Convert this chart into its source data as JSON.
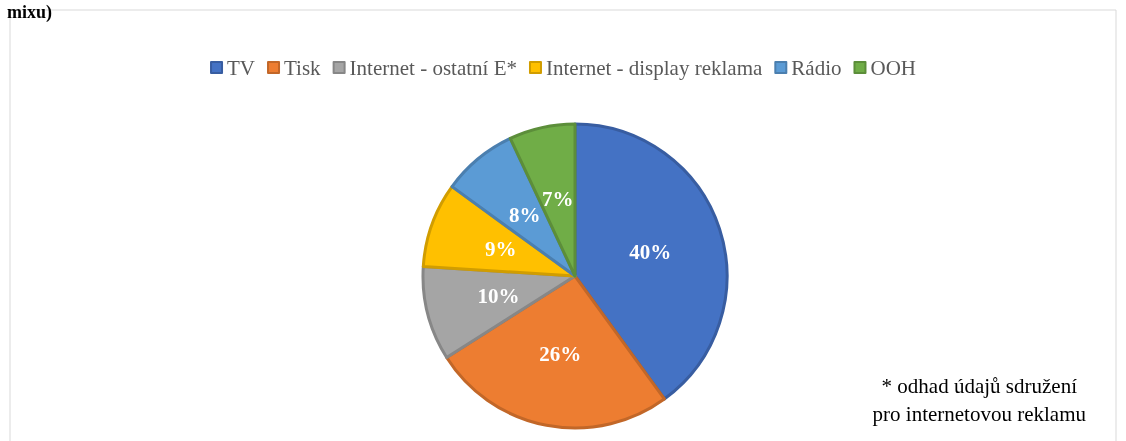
{
  "chart_data": {
    "type": "pie",
    "title": "mixu)",
    "categories": [
      "TV",
      "Tisk",
      "Internet - ostatní E*",
      "Internet - display reklama",
      "Rádio",
      "OOH"
    ],
    "values": [
      40,
      26,
      10,
      9,
      8,
      7
    ],
    "colors": [
      "#4472c4",
      "#ed7d31",
      "#a5a5a5",
      "#ffc000",
      "#5b9bd5",
      "#70ad47"
    ],
    "value_labels": [
      "40%",
      "26%",
      "10%",
      "9%",
      "8%",
      "7%"
    ],
    "legend": "top",
    "annotations": [
      "* odhad údajů sdružení\npro internetovou reklamu"
    ]
  }
}
